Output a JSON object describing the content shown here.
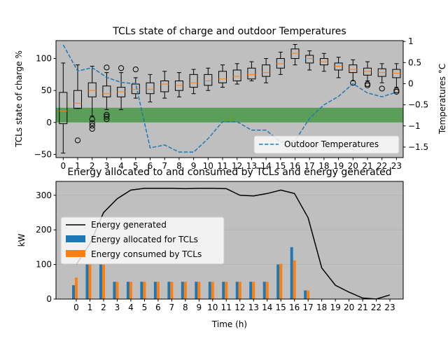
{
  "chart_data": [
    {
      "type": "box",
      "title": "TCLs state of charge and outdoor Temperatures",
      "ylabel": "TCLs state of charge %",
      "y2label": "Temperatures °C",
      "ylim": [
        -55,
        128
      ],
      "y2lim": [
        -1.75,
        1.02
      ],
      "yticks": [
        -50,
        0,
        50,
        100
      ],
      "y2ticks": [
        -1.5,
        -1.0,
        -0.5,
        0.0,
        0.5,
        1.0
      ],
      "categories": [
        "0",
        "1",
        "2",
        "3",
        "4",
        "5",
        "6",
        "7",
        "8",
        "9",
        "10",
        "11",
        "12",
        "13",
        "14",
        "15",
        "16",
        "17",
        "18",
        "19",
        "20",
        "21",
        "22",
        "23"
      ],
      "comfort_band": [
        0,
        23
      ],
      "boxes": [
        {
          "whislo": -48,
          "q1": -2,
          "med": 18,
          "q3": 47,
          "whishi": 93,
          "fliers": []
        },
        {
          "whislo": 22,
          "q1": 22,
          "med": 30,
          "q3": 50,
          "whishi": 90,
          "fliers": [
            -28
          ]
        },
        {
          "whislo": 10,
          "q1": 40,
          "med": 50,
          "q3": 62,
          "whishi": 88,
          "fliers": [
            5,
            -1,
            -5,
            -10
          ]
        },
        {
          "whislo": 20,
          "q1": 40,
          "med": 45,
          "q3": 57,
          "whishi": 78,
          "fliers": [
            86,
            12,
            9,
            5
          ]
        },
        {
          "whislo": 20,
          "q1": 40,
          "med": 48,
          "q3": 55,
          "whishi": 78,
          "fliers": [
            85
          ]
        },
        {
          "whislo": 38,
          "q1": 45,
          "med": 52,
          "q3": 60,
          "whishi": 70,
          "fliers": [
            83
          ]
        },
        {
          "whislo": 32,
          "q1": 45,
          "med": 52,
          "q3": 62,
          "whishi": 75,
          "fliers": []
        },
        {
          "whislo": 38,
          "q1": 48,
          "med": 60,
          "q3": 65,
          "whishi": 80,
          "fliers": []
        },
        {
          "whislo": 40,
          "q1": 50,
          "med": 58,
          "q3": 65,
          "whishi": 78,
          "fliers": []
        },
        {
          "whislo": 45,
          "q1": 55,
          "med": 62,
          "q3": 75,
          "whishi": 83,
          "fliers": []
        },
        {
          "whislo": 50,
          "q1": 58,
          "med": 65,
          "q3": 75,
          "whishi": 85,
          "fliers": []
        },
        {
          "whislo": 55,
          "q1": 62,
          "med": 68,
          "q3": 80,
          "whishi": 90,
          "fliers": []
        },
        {
          "whislo": 60,
          "q1": 65,
          "med": 72,
          "q3": 82,
          "whishi": 92,
          "fliers": []
        },
        {
          "whislo": 65,
          "q1": 68,
          "med": 75,
          "q3": 85,
          "whishi": 95,
          "fliers": []
        },
        {
          "whislo": 62,
          "q1": 72,
          "med": 78,
          "q3": 90,
          "whishi": 100,
          "fliers": []
        },
        {
          "whislo": 75,
          "q1": 85,
          "med": 92,
          "q3": 100,
          "whishi": 110,
          "fliers": []
        },
        {
          "whislo": 90,
          "q1": 100,
          "med": 108,
          "q3": 115,
          "whishi": 122,
          "fliers": []
        },
        {
          "whislo": 82,
          "q1": 93,
          "med": 100,
          "q3": 105,
          "whishi": 112,
          "fliers": []
        },
        {
          "whislo": 80,
          "q1": 90,
          "med": 95,
          "q3": 100,
          "whishi": 108,
          "fliers": []
        },
        {
          "whislo": 70,
          "q1": 82,
          "med": 88,
          "q3": 93,
          "whishi": 102,
          "fliers": []
        },
        {
          "whislo": 65,
          "q1": 78,
          "med": 83,
          "q3": 90,
          "whishi": 98,
          "fliers": [
            62
          ]
        },
        {
          "whislo": 65,
          "q1": 74,
          "med": 80,
          "q3": 85,
          "whishi": 95,
          "fliers": [
            60,
            58
          ]
        },
        {
          "whislo": 62,
          "q1": 72,
          "med": 78,
          "q3": 84,
          "whishi": 92,
          "fliers": [
            53
          ]
        },
        {
          "whislo": 55,
          "q1": 70,
          "med": 77,
          "q3": 83,
          "whishi": 92,
          "fliers": [
            50,
            48
          ]
        }
      ],
      "series": [
        {
          "name": "Outdoor Temperatures",
          "axis": "right",
          "style": "dashed",
          "color": "#1f77b4",
          "values": [
            0.92,
            0.3,
            0.38,
            0.15,
            0.03,
            0.0,
            -1.52,
            -1.45,
            -1.62,
            -1.62,
            -1.3,
            -0.9,
            -0.9,
            -1.1,
            -1.1,
            -1.38,
            -1.35,
            -0.82,
            -0.5,
            -0.3,
            0.0,
            -0.22,
            -0.31,
            -0.2
          ]
        }
      ],
      "legend": "lower-right"
    },
    {
      "type": "bar",
      "title": "Energy allocated to and consumed by TCLs and energy generated",
      "xlabel": "Time (h)",
      "ylabel": "kW",
      "ylim": [
        0,
        340
      ],
      "yticks": [
        0,
        100,
        200,
        300
      ],
      "categories": [
        "0",
        "1",
        "2",
        "3",
        "4",
        "5",
        "6",
        "7",
        "8",
        "9",
        "10",
        "11",
        "12",
        "13",
        "14",
        "15",
        "16",
        "17",
        "18",
        "19",
        "20",
        "21",
        "22",
        "23"
      ],
      "series": [
        {
          "name": "Energy generated",
          "type": "line",
          "color": "#000000",
          "values": [
            100,
            160,
            250,
            290,
            315,
            320,
            320,
            320,
            319,
            320,
            320,
            319,
            300,
            298,
            305,
            315,
            305,
            235,
            90,
            40,
            20,
            3,
            0,
            12
          ]
        },
        {
          "name": "Energy allocated for TCLs",
          "type": "bar",
          "color": "#1f77b4",
          "values": [
            40,
            100,
            100,
            50,
            50,
            50,
            50,
            50,
            50,
            50,
            50,
            50,
            50,
            50,
            50,
            100,
            150,
            25,
            0,
            0,
            0,
            0,
            0,
            0
          ]
        },
        {
          "name": "Energy consumed by TCLs",
          "type": "bar",
          "color": "#ff7f0e",
          "values": [
            62,
            100,
            100,
            50,
            50,
            50,
            50,
            50,
            50,
            50,
            50,
            50,
            50,
            50,
            50,
            102,
            112,
            25,
            0,
            0,
            0,
            0,
            0,
            0
          ]
        }
      ],
      "legend": "center-left"
    }
  ],
  "colors": {
    "plot_bg": "#bfbfbf",
    "band": "#5a9e5a",
    "median": "#ff7f0e",
    "temp": "#1f77b4"
  }
}
